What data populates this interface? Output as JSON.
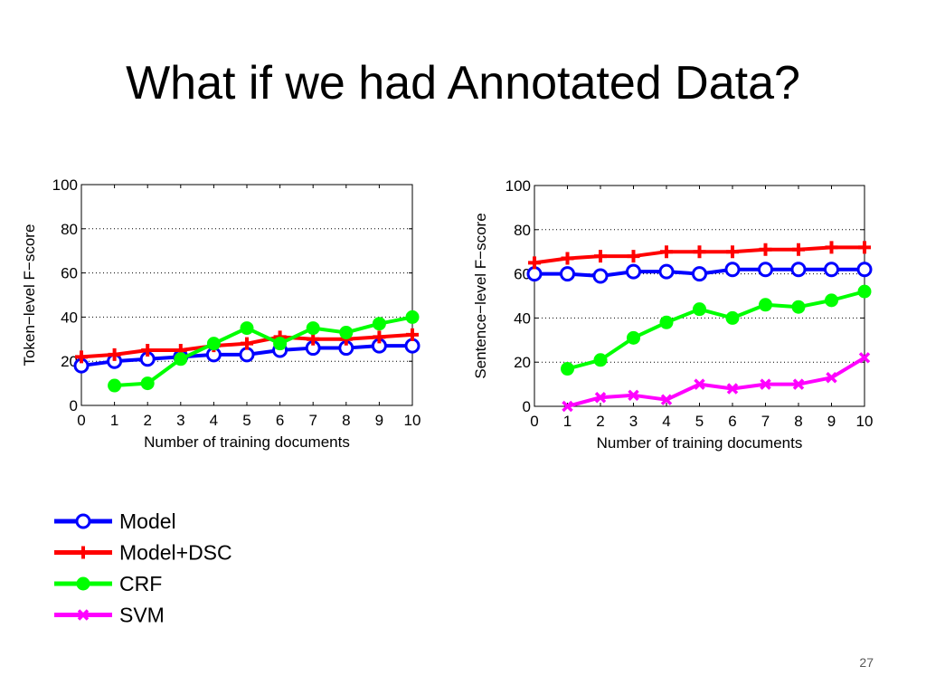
{
  "slide": {
    "title": "What if we had Annotated Data?",
    "page_number": "27"
  },
  "colors": {
    "Model": "#0000ff",
    "Model+DSC": "#ff0000",
    "CRF": "#00ff00",
    "SVM": "#ff00ff"
  },
  "markers": {
    "Model": "circle",
    "Model+DSC": "plus",
    "CRF": "diamond-filled",
    "SVM": "x"
  },
  "legend": {
    "entries": [
      "Model",
      "Model+DSC",
      "CRF",
      "SVM"
    ],
    "placement": "below-left"
  },
  "chart_data": [
    {
      "type": "line",
      "title": "",
      "xlabel": "Number of training documents",
      "ylabel": "Token−level F−score",
      "xlim": [
        0,
        10
      ],
      "ylim": [
        0,
        100
      ],
      "xticks": [
        0,
        1,
        2,
        3,
        4,
        5,
        6,
        7,
        8,
        9,
        10
      ],
      "yticks": [
        0,
        20,
        40,
        60,
        80,
        100
      ],
      "grid": "dotted-horizontal",
      "series": [
        {
          "name": "Model",
          "x": [
            0,
            1,
            2,
            3,
            4,
            5,
            6,
            7,
            8,
            9,
            10
          ],
          "y": [
            18,
            20,
            21,
            22,
            23,
            23,
            25,
            26,
            26,
            27,
            27
          ]
        },
        {
          "name": "Model+DSC",
          "x": [
            0,
            1,
            2,
            3,
            4,
            5,
            6,
            7,
            8,
            9,
            10
          ],
          "y": [
            22,
            23,
            25,
            25,
            27,
            28,
            31,
            30,
            30,
            31,
            32
          ]
        },
        {
          "name": "CRF",
          "x": [
            1,
            2,
            3,
            4,
            5,
            6,
            7,
            8,
            9,
            10
          ],
          "y": [
            9,
            10,
            21,
            28,
            35,
            28,
            35,
            33,
            37,
            40
          ]
        }
      ]
    },
    {
      "type": "line",
      "title": "",
      "xlabel": "Number of training documents",
      "ylabel": "Sentence−level F−score",
      "xlim": [
        0,
        10
      ],
      "ylim": [
        0,
        100
      ],
      "xticks": [
        0,
        1,
        2,
        3,
        4,
        5,
        6,
        7,
        8,
        9,
        10
      ],
      "yticks": [
        0,
        20,
        40,
        60,
        80,
        100
      ],
      "grid": "dotted-horizontal",
      "series": [
        {
          "name": "Model",
          "x": [
            0,
            1,
            2,
            3,
            4,
            5,
            6,
            7,
            8,
            9,
            10
          ],
          "y": [
            60,
            60,
            59,
            61,
            61,
            60,
            62,
            62,
            62,
            62,
            62
          ]
        },
        {
          "name": "Model+DSC",
          "x": [
            0,
            1,
            2,
            3,
            4,
            5,
            6,
            7,
            8,
            9,
            10
          ],
          "y": [
            65,
            67,
            68,
            68,
            70,
            70,
            70,
            71,
            71,
            72,
            72
          ]
        },
        {
          "name": "CRF",
          "x": [
            1,
            2,
            3,
            4,
            5,
            6,
            7,
            8,
            9,
            10
          ],
          "y": [
            17,
            21,
            31,
            38,
            44,
            40,
            46,
            45,
            48,
            52
          ]
        },
        {
          "name": "SVM",
          "x": [
            1,
            2,
            3,
            4,
            5,
            6,
            7,
            8,
            9,
            10
          ],
          "y": [
            0,
            4,
            5,
            3,
            10,
            8,
            10,
            10,
            13,
            22
          ]
        }
      ]
    }
  ]
}
